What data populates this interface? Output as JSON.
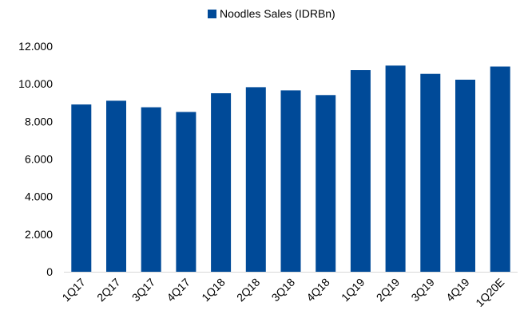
{
  "chart_data": {
    "type": "bar",
    "title": "",
    "xlabel": "",
    "ylabel": "",
    "categories": [
      "1Q17",
      "2Q17",
      "3Q17",
      "4Q17",
      "1Q18",
      "2Q18",
      "3Q18",
      "4Q18",
      "1Q19",
      "2Q19",
      "3Q19",
      "4Q19",
      "1Q20E"
    ],
    "series": [
      {
        "name": "Noodles Sales (IDRBn)",
        "color": "#004A98",
        "values": [
          8900,
          9100,
          8750,
          8500,
          9500,
          9820,
          9650,
          9400,
          10730,
          10970,
          10530,
          10220,
          10920
        ]
      }
    ],
    "ylim": [
      0,
      12000
    ],
    "yticks": [
      "0",
      "2.000",
      "4.000",
      "6.000",
      "8.000",
      "10.000",
      "12.000"
    ],
    "ytick_values": [
      0,
      2000,
      4000,
      6000,
      8000,
      10000,
      12000
    ],
    "grid": false,
    "legend_position": "top-center"
  }
}
